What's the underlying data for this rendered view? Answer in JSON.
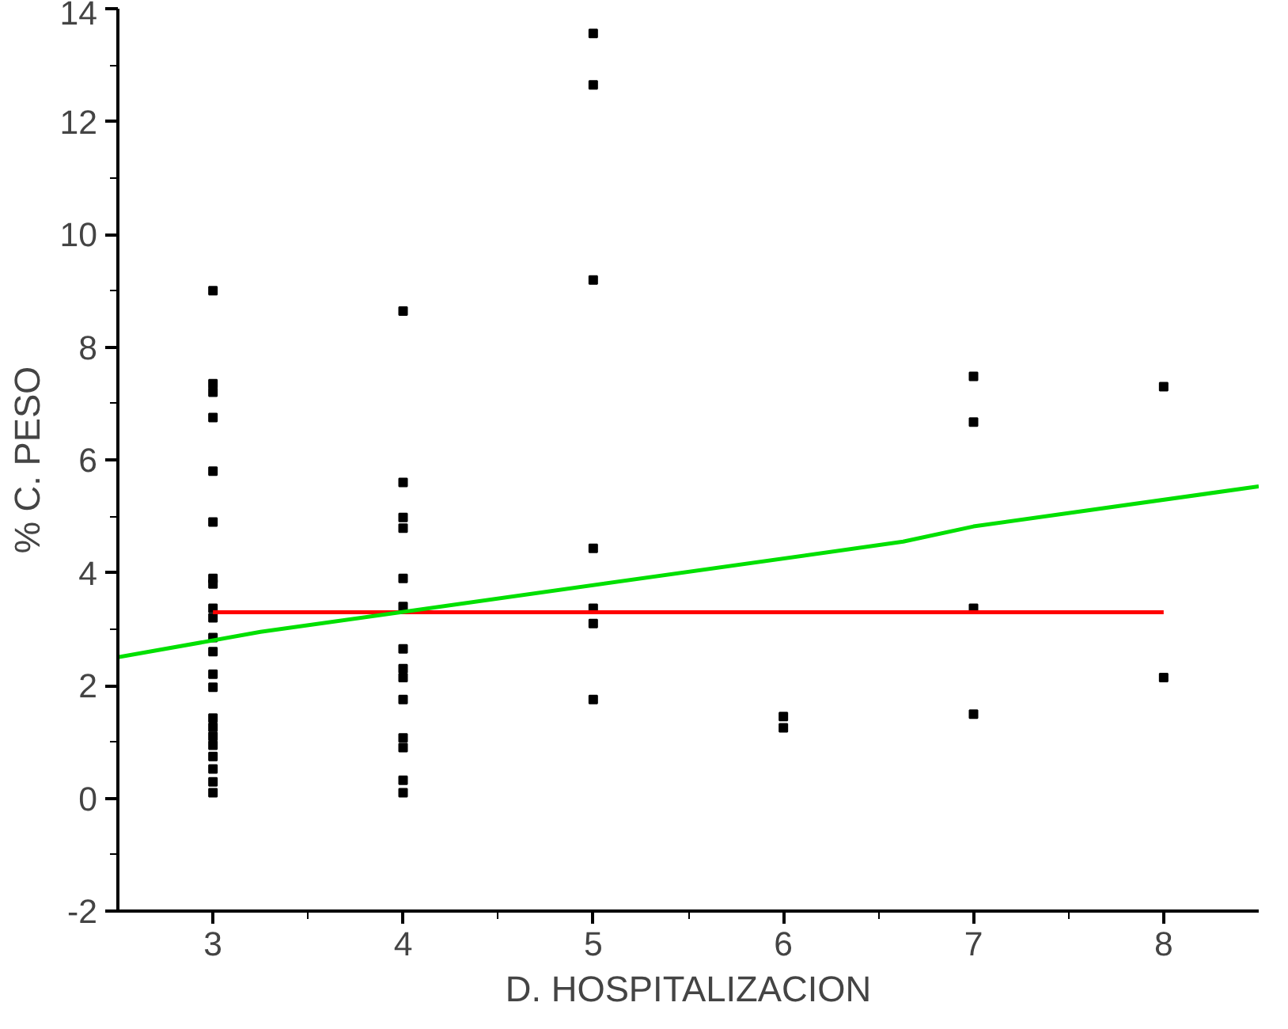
{
  "chart_data": {
    "type": "scatter",
    "xlabel": "D. HOSPITALIZACION",
    "ylabel": "% C. PESO",
    "xlim": [
      2.5,
      8.5
    ],
    "ylim": [
      -2,
      14
    ],
    "xticks": [
      3,
      4,
      5,
      6,
      7,
      8
    ],
    "yticks": [
      -2,
      0,
      2,
      4,
      6,
      8,
      10,
      12,
      14
    ],
    "grid": false,
    "series": [
      {
        "marker": "square",
        "color": "#000000",
        "x": [
          3,
          3,
          3,
          3,
          3,
          3,
          3,
          3,
          3,
          3,
          3,
          3,
          3,
          3,
          3,
          3,
          3,
          3,
          3,
          3,
          3,
          3,
          4,
          4,
          4,
          4,
          4,
          4,
          4,
          4,
          4,
          4,
          4,
          4,
          4,
          4,
          5,
          5,
          5,
          5,
          5,
          5,
          5,
          6,
          6,
          7,
          7,
          7,
          7,
          8,
          8
        ],
        "values": [
          9.0,
          7.35,
          7.2,
          6.75,
          5.8,
          4.9,
          3.9,
          3.8,
          3.37,
          3.2,
          2.85,
          2.6,
          2.2,
          1.97,
          1.42,
          1.26,
          1.1,
          0.94,
          0.74,
          0.52,
          0.29,
          0.1,
          8.64,
          5.6,
          4.98,
          4.79,
          3.9,
          3.4,
          2.65,
          2.3,
          2.14,
          1.75,
          1.07,
          0.9,
          0.32,
          0.1,
          13.56,
          12.65,
          9.19,
          4.43,
          3.37,
          3.1,
          1.75,
          1.45,
          1.25,
          7.48,
          6.67,
          3.37,
          1.49,
          7.3,
          2.14
        ]
      },
      {
        "type": "line",
        "color": "#ff0000",
        "x": [
          3,
          8
        ],
        "values": [
          3.3,
          3.3
        ]
      },
      {
        "type": "line",
        "color": "#00e000",
        "x": [
          2.5,
          3.25,
          6.63,
          7.0,
          8.5
        ],
        "values": [
          2.5,
          2.95,
          4.55,
          4.82,
          5.53
        ]
      }
    ]
  }
}
